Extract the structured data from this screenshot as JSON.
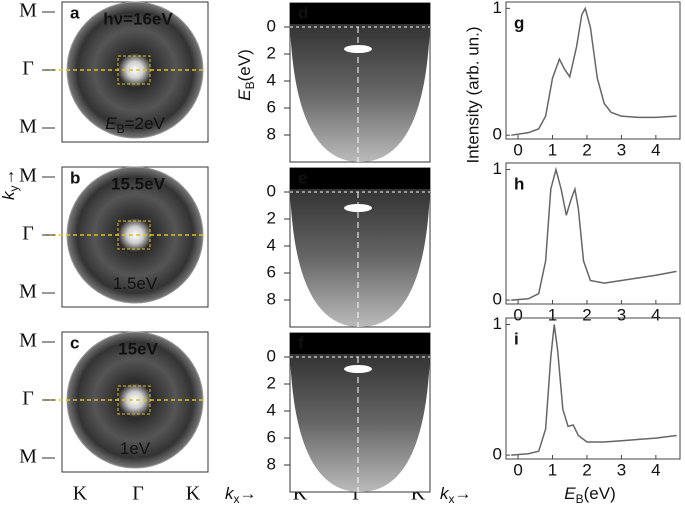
{
  "panels_left": [
    {
      "letter": "a",
      "energy": "hν=16eV",
      "binding": {
        "symbol": "E",
        "sub": "B",
        "rest": "=2eV"
      }
    },
    {
      "letter": "b",
      "energy": "15.5eV",
      "binding": {
        "symbol": "",
        "sub": "",
        "rest": "1.5eV"
      }
    },
    {
      "letter": "c",
      "energy": "15eV",
      "binding": {
        "symbol": "",
        "sub": "",
        "rest": "1eV"
      }
    }
  ],
  "side_labels": [
    "M",
    "Γ",
    "M"
  ],
  "bottom_labels": [
    "K",
    "Γ",
    "K"
  ],
  "ky_label": {
    "symbol": "k",
    "sub": "y",
    "arrow": "→"
  },
  "kx_label": {
    "symbol": "k",
    "sub": "x",
    "arrow": "→"
  },
  "panels_mid": [
    "d",
    "e",
    "f"
  ],
  "energy_ticks": [
    0,
    2,
    4,
    6,
    8
  ],
  "energy_axis_label": {
    "symbol": "E",
    "sub": "B",
    "rest": "(eV)"
  },
  "chart_data": [
    {
      "type": "line",
      "letter": "g",
      "ylabel": "Intensity (arb. un.)",
      "color": "#666",
      "x": [
        -0.2,
        0.3,
        0.6,
        0.8,
        1.0,
        1.2,
        1.35,
        1.5,
        1.7,
        1.85,
        1.95,
        2.1,
        2.3,
        2.5,
        2.7,
        3.0,
        3.5,
        4.0,
        4.6
      ],
      "values": [
        0.0,
        0.02,
        0.05,
        0.15,
        0.45,
        0.6,
        0.52,
        0.46,
        0.7,
        0.95,
        1.0,
        0.85,
        0.45,
        0.25,
        0.18,
        0.15,
        0.14,
        0.14,
        0.15
      ],
      "xlim": [
        -0.35,
        4.7
      ],
      "ylim": [
        -0.03,
        1.05
      ],
      "xticks": [
        0,
        1,
        2,
        3,
        4
      ],
      "yticks": [
        0,
        1
      ]
    },
    {
      "type": "line",
      "letter": "h",
      "color": "#666",
      "x": [
        -0.2,
        0.3,
        0.6,
        0.8,
        0.95,
        1.1,
        1.25,
        1.4,
        1.55,
        1.65,
        1.75,
        1.9,
        2.1,
        2.5,
        3.0,
        3.5,
        4.0,
        4.6
      ],
      "values": [
        0.0,
        0.01,
        0.05,
        0.3,
        0.85,
        1.0,
        0.85,
        0.65,
        0.78,
        0.85,
        0.7,
        0.3,
        0.15,
        0.13,
        0.15,
        0.17,
        0.19,
        0.22
      ],
      "xlim": [
        -0.35,
        4.7
      ],
      "ylim": [
        -0.03,
        1.05
      ],
      "xticks": [
        0,
        1,
        2,
        3,
        4
      ],
      "yticks": [
        0,
        1
      ]
    },
    {
      "type": "line",
      "letter": "i",
      "color": "#666",
      "xlabel": {
        "symbol": "E",
        "sub": "B",
        "rest": "(eV)"
      },
      "x": [
        -0.2,
        0.3,
        0.6,
        0.8,
        0.95,
        1.05,
        1.15,
        1.3,
        1.45,
        1.6,
        1.75,
        2.0,
        2.5,
        3.0,
        3.5,
        4.0,
        4.6
      ],
      "values": [
        0.0,
        0.01,
        0.03,
        0.2,
        0.75,
        1.0,
        0.8,
        0.35,
        0.22,
        0.23,
        0.15,
        0.1,
        0.1,
        0.11,
        0.12,
        0.13,
        0.15
      ],
      "xlim": [
        -0.35,
        4.7
      ],
      "ylim": [
        -0.03,
        1.05
      ],
      "xticks": [
        0,
        1,
        2,
        3,
        4
      ],
      "yticks": [
        0,
        1
      ]
    }
  ]
}
